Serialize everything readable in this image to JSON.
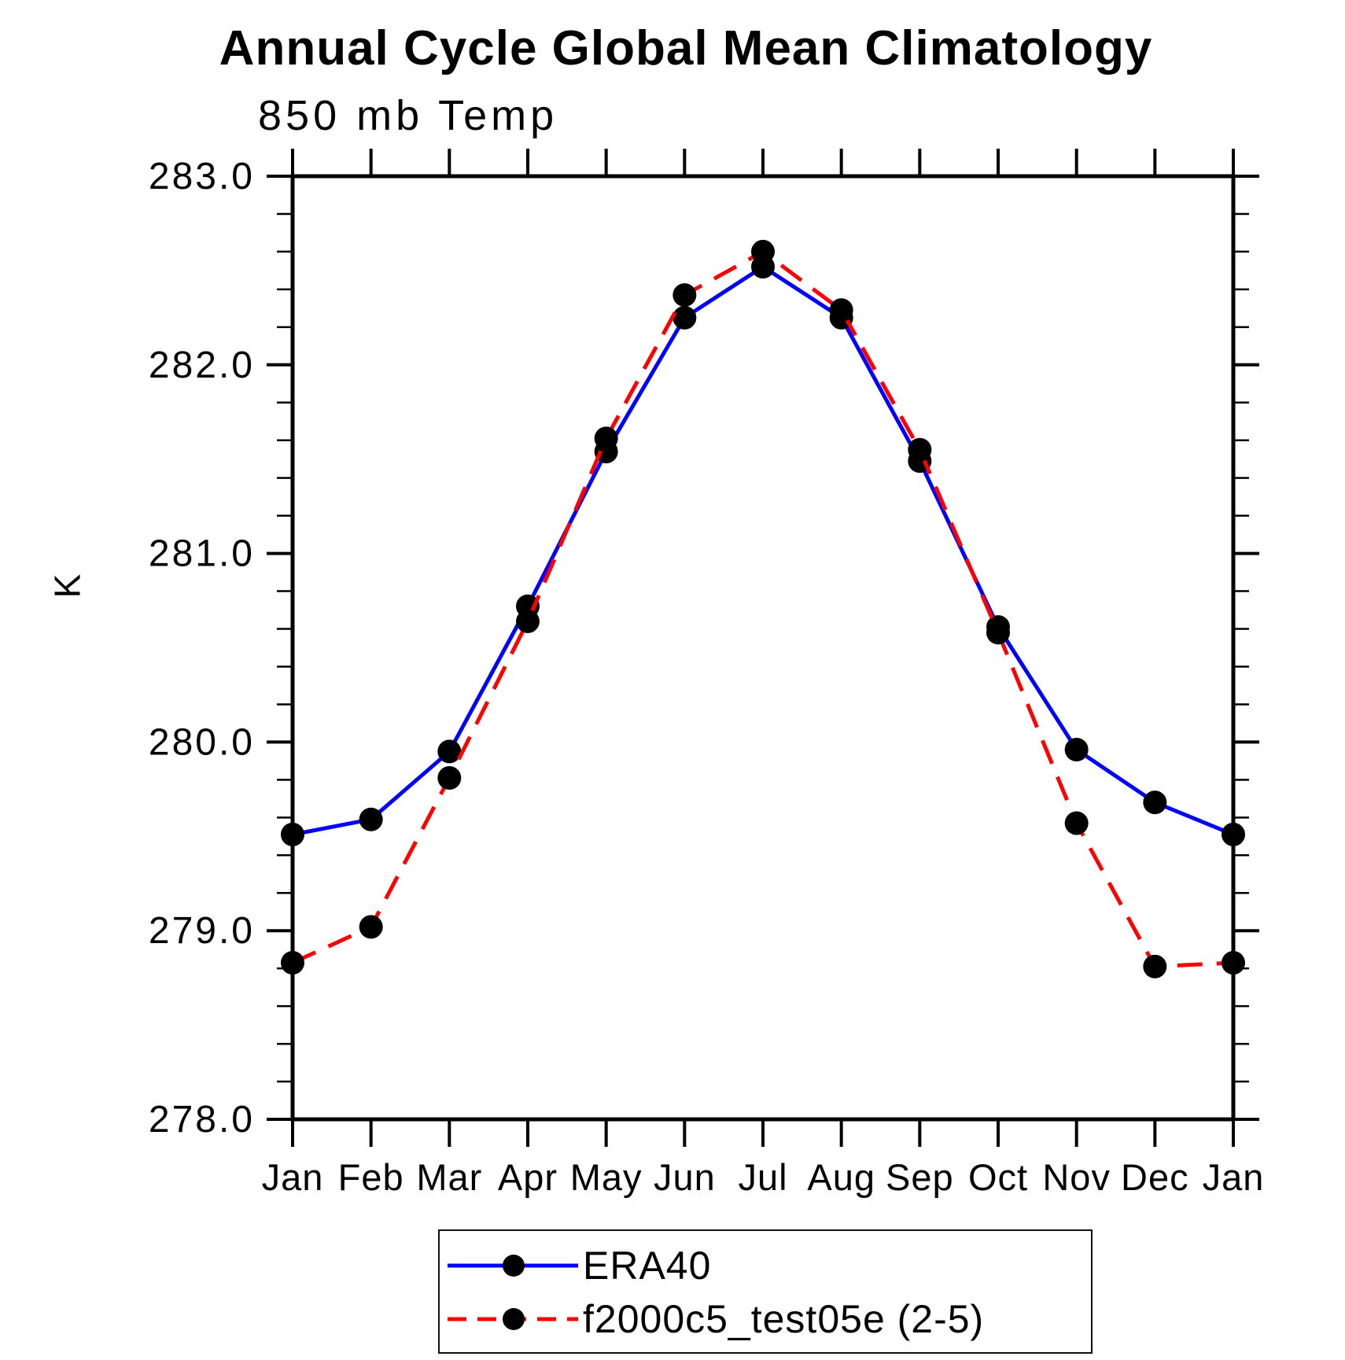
{
  "page": {
    "background": "#ffffff"
  },
  "chart_data": {
    "type": "line",
    "title": "Annual Cycle Global Mean Climatology",
    "subtitle": "850 mb Temp",
    "ylabel": "K",
    "xlabel": "",
    "x_categories": [
      "Jan",
      "Feb",
      "Mar",
      "Apr",
      "May",
      "Jun",
      "Jul",
      "Aug",
      "Sep",
      "Oct",
      "Nov",
      "Dec",
      "Jan"
    ],
    "ylim": [
      278.0,
      283.0
    ],
    "y_major_ticks": [
      {
        "value": 278.0,
        "label": "278.0"
      },
      {
        "value": 279.0,
        "label": "279.0"
      },
      {
        "value": 280.0,
        "label": "280.0"
      },
      {
        "value": 281.0,
        "label": "281.0"
      },
      {
        "value": 282.0,
        "label": "282.0"
      },
      {
        "value": 283.0,
        "label": "283.0"
      }
    ],
    "y_minor_step": 0.2,
    "grid": false,
    "legend_position": "bottom-center",
    "axis_color": "#000000",
    "marker_color": "#000000",
    "series": [
      {
        "name": "ERA40",
        "color": "#0000ff",
        "line_style": "solid",
        "marker": "circle",
        "values": [
          279.51,
          279.59,
          279.95,
          280.72,
          281.54,
          282.25,
          282.52,
          282.25,
          281.49,
          280.61,
          279.96,
          279.68,
          279.51
        ]
      },
      {
        "name": "f2000c5_test05e (2-5)",
        "color": "#ff0000",
        "line_style": "dashed",
        "marker": "circle",
        "values": [
          278.83,
          279.02,
          279.81,
          280.64,
          281.61,
          282.37,
          282.6,
          282.29,
          281.55,
          280.58,
          279.57,
          278.81,
          278.83
        ]
      }
    ]
  }
}
